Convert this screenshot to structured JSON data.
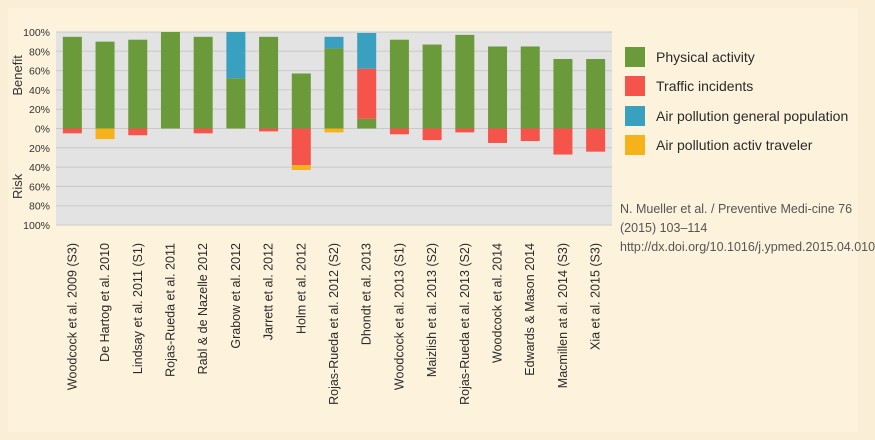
{
  "chart_data": {
    "type": "bar",
    "stacked": true,
    "ylabel_top": "Benefit",
    "ylabel_bottom": "Risk",
    "yticks": [
      "100%",
      "80%",
      "60%",
      "40%",
      "20%",
      "0%",
      "20%",
      "40%",
      "60%",
      "80%",
      "100%"
    ],
    "ylim": [
      -100,
      100
    ],
    "grid": true,
    "legend_position": "right",
    "categories": [
      "Woodcock et al. 2009 (S3)",
      "De Hartog et al. 2010",
      "Lindsay et al. 2011 (S1)",
      "Rojas-Rueda et al. 2011",
      "Rabl & de Nazelle 2012",
      "Grabow et al. 2012",
      "Jarrett et al. 2012",
      "Holm et al. 2012",
      "Rojas-Rueda et al. 2012 (S2)",
      "Dhondt et al. 2013",
      "Woodcock et al. 2013 (S1)",
      "Maizlish et al. 2013 (S2)",
      "Rojas-Rueda et al. 2013 (S2)",
      "Woodcock et al. 2014",
      "Edwards & Mason 2014",
      "Macmillen at al. 2014 (S3)",
      "Xia et al. 2015 (S3)"
    ],
    "series": [
      {
        "name": "Physical activity",
        "color": "#6b9a3a",
        "values": [
          95,
          90,
          92,
          100,
          95,
          52,
          95,
          57,
          83,
          10,
          92,
          87,
          97,
          85,
          85,
          72,
          72
        ]
      },
      {
        "name": "Traffic incidents",
        "color": "#f4544a",
        "values": [
          -5,
          0,
          -7,
          0,
          -5,
          0,
          -3,
          -38,
          0,
          52,
          -6,
          -12,
          -4,
          -15,
          -13,
          -27,
          -24
        ]
      },
      {
        "name": "Air pollution general population",
        "color": "#3aa0c0",
        "values": [
          0,
          0,
          0,
          0,
          0,
          48,
          0,
          0,
          12,
          37,
          0,
          0,
          0,
          0,
          0,
          0,
          0
        ]
      },
      {
        "name": "Air pollution activ traveler",
        "color": "#f5b21a",
        "values": [
          0,
          -11,
          0,
          0,
          0,
          0,
          0,
          -5,
          -4,
          0,
          0,
          0,
          0,
          0,
          0,
          0,
          0
        ]
      }
    ]
  },
  "citation": "N. Mueller et al. / Preventive Medi-cine 76 (2015) 103–114 http://dx.doi.org/10.1016/j.ypmed.2015.04.010"
}
